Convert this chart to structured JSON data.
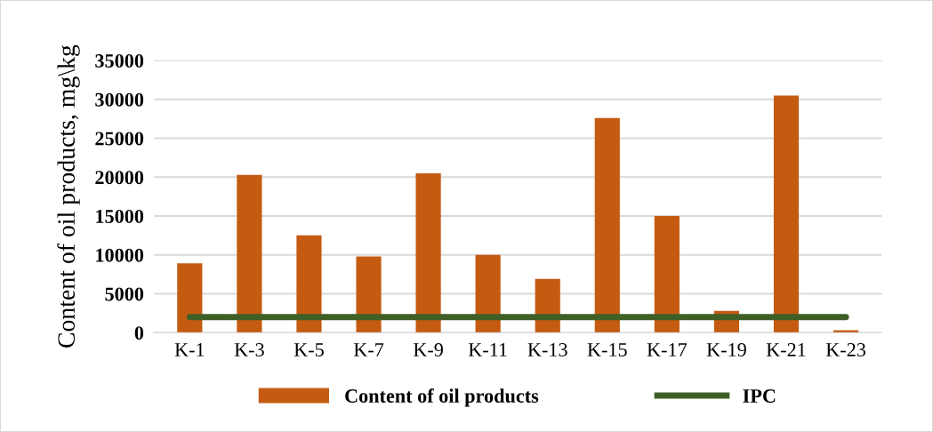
{
  "chart_data": {
    "type": "bar",
    "ylabel": "Content of oil products, mg\\kg",
    "categories": [
      "K-1",
      "K-3",
      "K-5",
      "K-7",
      "K-9",
      "K-11",
      "K-13",
      "K-15",
      "K-17",
      "K-19",
      "K-21",
      "K-23"
    ],
    "series": [
      {
        "name": "Content of oil products",
        "color": "#c55a11",
        "values": [
          8900,
          20300,
          12500,
          9800,
          20500,
          10000,
          6900,
          27600,
          15000,
          2800,
          30500,
          300
        ]
      },
      {
        "name": "IPC",
        "type": "line",
        "color": "#3f5f27",
        "values": [
          2000,
          2000,
          2000,
          2000,
          2000,
          2000,
          2000,
          2000,
          2000,
          2000,
          2000,
          2000
        ]
      }
    ],
    "ylim": [
      0,
      35000
    ],
    "yticks": [
      0,
      5000,
      10000,
      15000,
      20000,
      25000,
      30000,
      35000
    ],
    "grid": "y",
    "legend": "bottom"
  }
}
